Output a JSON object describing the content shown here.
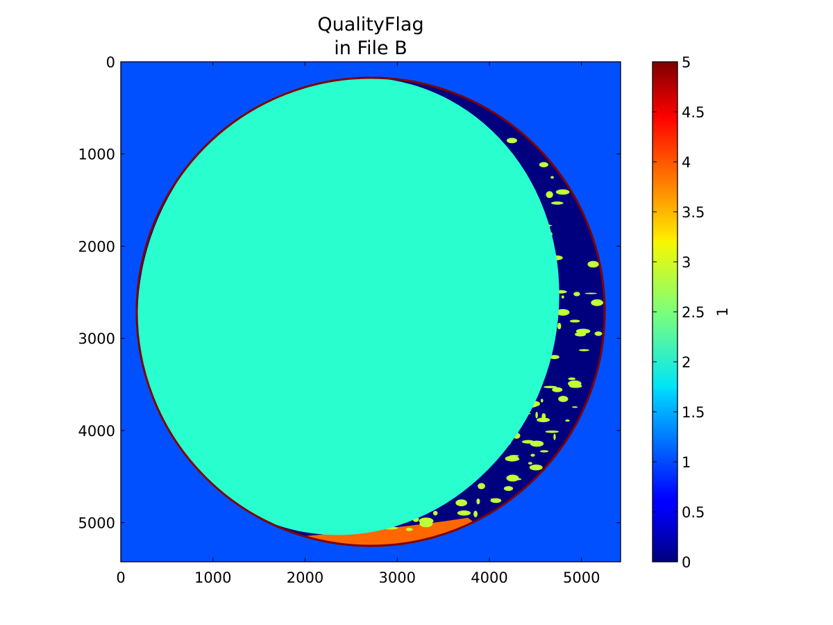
{
  "chart_data": {
    "type": "heatmap",
    "title": [
      "QualityFlag",
      "in File B"
    ],
    "xlabel": "",
    "ylabel": "",
    "xlim": [
      0,
      5424
    ],
    "ylim": [
      5424,
      0
    ],
    "xticks": [
      "0",
      "1000",
      "2000",
      "3000",
      "4000",
      "5000"
    ],
    "xtick_values": [
      0,
      1000,
      2000,
      3000,
      4000,
      5000
    ],
    "yticks": [
      "0",
      "1000",
      "2000",
      "3000",
      "4000",
      "5000"
    ],
    "ytick_values": [
      0,
      1000,
      2000,
      3000,
      4000,
      5000
    ],
    "colormap": "jet",
    "colorbar": {
      "label": "1",
      "range": [
        0,
        5
      ],
      "ticks": [
        "0",
        "0.5",
        "1",
        "1.5",
        "2",
        "2.5",
        "3",
        "3.5",
        "4",
        "4.5",
        "5"
      ],
      "tick_values": [
        0,
        0.5,
        1,
        1.5,
        2,
        2.5,
        3,
        3.5,
        4,
        4.5,
        5
      ]
    },
    "regions": [
      {
        "name": "space background",
        "flag_value": 1,
        "color": "#0050ff"
      },
      {
        "name": "earth disk",
        "flag_value": 0,
        "color": "#00007f"
      },
      {
        "name": "night side",
        "flag_value": 2,
        "color": "#29ffce"
      },
      {
        "name": "cloud patches",
        "flag_value": 3,
        "color": "#c1ff36"
      },
      {
        "name": "southern limb band",
        "flag_value": 4,
        "color": "#ff6800"
      },
      {
        "name": "disk edge",
        "flag_value": 5,
        "color": "#7f0000"
      }
    ],
    "geometry_data_units": {
      "disk_center": [
        2712,
        2712
      ],
      "disk_radius": 2550,
      "night_ellipse_center": [
        2470,
        2650
      ],
      "night_ellipse_radii": [
        2270,
        2500
      ]
    }
  }
}
